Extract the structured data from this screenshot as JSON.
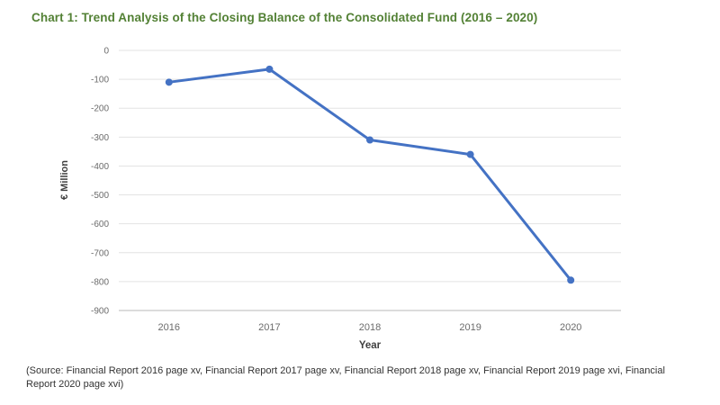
{
  "page": {
    "background": "#ffffff",
    "source_note": "(Source: Financial Report 2016 page xv, Financial Report 2017 page xv, Financial Report 2018 page xv, Financial Report 2019 page xvi, Financial Report 2020 page xvi)"
  },
  "chart_data": {
    "type": "line",
    "title": "Chart 1: Trend Analysis of the Closing Balance of the Consolidated Fund (2016 – 2020)",
    "categories": [
      "2016",
      "2017",
      "2018",
      "2019",
      "2020"
    ],
    "values": [
      -110,
      -65,
      -310,
      -360,
      -795
    ],
    "xlabel": "Year",
    "ylabel": "€ Million",
    "ylim": [
      -900,
      0
    ],
    "ytick_step": 100,
    "grid": true,
    "legend": "none",
    "marker": "circle",
    "colors": {
      "title": "#538135",
      "line": "#4472C4",
      "marker": "#4472C4",
      "grid": "#e3e3e3",
      "axis_line": "#c6c6c6",
      "tick_label": "#6b6b6b",
      "axis_title": "#3f3f3f",
      "source_text": "#333333"
    }
  }
}
